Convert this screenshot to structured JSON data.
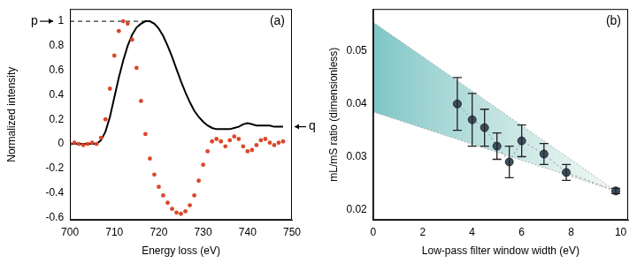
{
  "chart_data": [
    {
      "type": "line",
      "title": "(a)",
      "x_label": "Energy loss (eV)",
      "y_label": "Normalized intensity",
      "xlim": [
        700,
        750
      ],
      "xticks": [
        700,
        710,
        720,
        730,
        740,
        750
      ],
      "ylim": [
        -0.62,
        1.1
      ],
      "yticks": [
        -0.6,
        -0.4,
        -0.2,
        0,
        0.2,
        0.4,
        0.6,
        0.8,
        1
      ],
      "grid": false,
      "series": [
        {
          "color": "#d9482b",
          "marker": "circle",
          "line_style": "none",
          "x": [
            700,
            701,
            702,
            703,
            704,
            705,
            706,
            707,
            708,
            709,
            710,
            711,
            712,
            713,
            714,
            715,
            716,
            717,
            718,
            719,
            720,
            721,
            722,
            723,
            724,
            725,
            726,
            727,
            728,
            729,
            730,
            731,
            732,
            733,
            734,
            735,
            736,
            737,
            738,
            739,
            740,
            741,
            742,
            743,
            744,
            745,
            746,
            747,
            748
          ],
          "values": [
            0,
            0.01,
            0,
            -0.01,
            0,
            0.01,
            0,
            0.05,
            0.2,
            0.45,
            0.72,
            0.92,
            1.0,
            0.98,
            0.85,
            0.62,
            0.35,
            0.08,
            -0.12,
            -0.25,
            -0.35,
            -0.42,
            -0.48,
            -0.53,
            -0.56,
            -0.57,
            -0.55,
            -0.5,
            -0.42,
            -0.3,
            -0.17,
            -0.06,
            0.02,
            0.04,
            0.02,
            -0.02,
            0.03,
            0.06,
            0.04,
            -0.02,
            -0.06,
            -0.05,
            -0.01,
            0.03,
            0.04,
            0.01,
            -0.01,
            0.01,
            0.02
          ]
        },
        {
          "color": "#000000",
          "marker": "none",
          "line_style": "solid",
          "x": [
            700,
            701,
            702,
            703,
            704,
            705,
            706,
            707,
            708,
            709,
            710,
            711,
            712,
            713,
            714,
            715,
            716,
            717,
            718,
            719,
            720,
            721,
            722,
            723,
            724,
            725,
            726,
            727,
            728,
            729,
            730,
            731,
            732,
            733,
            734,
            735,
            736,
            737,
            738,
            739,
            740,
            741,
            742,
            743,
            744,
            745,
            746,
            747,
            748
          ],
          "values": [
            0,
            0,
            0,
            0,
            0,
            0,
            0,
            0.03,
            0.1,
            0.22,
            0.38,
            0.54,
            0.68,
            0.8,
            0.89,
            0.95,
            0.98,
            1.0,
            1.0,
            0.98,
            0.94,
            0.88,
            0.8,
            0.71,
            0.61,
            0.51,
            0.42,
            0.34,
            0.27,
            0.22,
            0.18,
            0.15,
            0.13,
            0.12,
            0.12,
            0.12,
            0.12,
            0.13,
            0.14,
            0.16,
            0.17,
            0.16,
            0.15,
            0.15,
            0.15,
            0.15,
            0.14,
            0.14,
            0.14
          ]
        },
        {
          "color": "#000000",
          "marker": "none",
          "line_style": "dashed",
          "x": [
            700,
            717
          ],
          "values": [
            1,
            1
          ]
        }
      ],
      "annotations": [
        {
          "text": "p",
          "x": 700,
          "y": 1
        },
        {
          "text": "q",
          "x": 750,
          "y": 0.14
        }
      ]
    },
    {
      "type": "scatter",
      "title": "(b)",
      "x_label": "Low-pass filter window width (eV)",
      "y_label": "mL/mS ratio (dimensionless)",
      "xlim": [
        0,
        10.3
      ],
      "xticks": [
        0,
        2,
        4,
        6,
        8,
        10
      ],
      "ylim": [
        0.018,
        0.058
      ],
      "yticks": [
        0.02,
        0.03,
        0.04,
        0.05
      ],
      "grid": false,
      "series": [
        {
          "color": "#3f4f60",
          "marker": "circle",
          "line_style": "dotted",
          "x": [
            3.4,
            4.0,
            4.5,
            5.0,
            5.5,
            6.0,
            6.9,
            7.8,
            9.8
          ],
          "values": [
            0.04,
            0.037,
            0.0355,
            0.032,
            0.029,
            0.033,
            0.0305,
            0.027,
            0.0235
          ],
          "errors": [
            0.005,
            0.005,
            0.0035,
            0.0025,
            0.003,
            0.003,
            0.002,
            0.0015,
            0.0005
          ]
        }
      ],
      "band": {
        "color": "#7fc6c6",
        "x": [
          0,
          9.8
        ],
        "upper": [
          0.0555,
          0.0235
        ],
        "lower": [
          0.0385,
          0.0235
        ]
      }
    }
  ]
}
